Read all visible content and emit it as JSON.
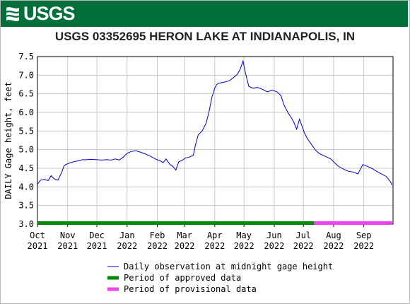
{
  "header": {
    "agency": "USGS"
  },
  "chart_data": {
    "type": "line",
    "title": "USGS 03352695 HERON LAKE AT INDIANAPOLIS, IN",
    "ylabel": "DAILY Gage height, feet",
    "xlabel": "",
    "ylim": [
      3.0,
      7.5
    ],
    "yticks": [
      "3.0",
      "3.5",
      "4.0",
      "4.5",
      "5.0",
      "5.5",
      "6.0",
      "6.5",
      "7.0",
      "7.5"
    ],
    "xlim": [
      "2021-10-01",
      "2022-09-30"
    ],
    "xticks": [
      {
        "date": "2021-10-01",
        "month": "Oct",
        "year": "2021"
      },
      {
        "date": "2021-11-01",
        "month": "Nov",
        "year": "2021"
      },
      {
        "date": "2021-12-01",
        "month": "Dec",
        "year": "2021"
      },
      {
        "date": "2022-01-01",
        "month": "Jan",
        "year": "2022"
      },
      {
        "date": "2022-02-01",
        "month": "Feb",
        "year": "2022"
      },
      {
        "date": "2022-03-01",
        "month": "Mar",
        "year": "2022"
      },
      {
        "date": "2022-04-01",
        "month": "Apr",
        "year": "2022"
      },
      {
        "date": "2022-05-01",
        "month": "May",
        "year": "2022"
      },
      {
        "date": "2022-06-01",
        "month": "Jun",
        "year": "2022"
      },
      {
        "date": "2022-07-01",
        "month": "Jul",
        "year": "2022"
      },
      {
        "date": "2022-08-01",
        "month": "Aug",
        "year": "2022"
      },
      {
        "date": "2022-09-01",
        "month": "Sep",
        "year": "2022"
      }
    ],
    "grid": true,
    "legend_position": "bottom",
    "series": [
      {
        "name": "Daily observation at midnight gage height",
        "color": "#0000cc",
        "x": [
          "2021-10-01",
          "2021-10-04",
          "2021-10-08",
          "2021-10-12",
          "2021-10-15",
          "2021-10-18",
          "2021-10-22",
          "2021-10-26",
          "2021-10-28",
          "2021-10-30",
          "2021-11-01",
          "2021-11-04",
          "2021-11-08",
          "2021-11-12",
          "2021-11-16",
          "2021-11-20",
          "2021-11-25",
          "2021-12-01",
          "2021-12-06",
          "2021-12-11",
          "2021-12-16",
          "2021-12-20",
          "2021-12-24",
          "2021-12-28",
          "2022-01-01",
          "2022-01-05",
          "2022-01-10",
          "2022-01-15",
          "2022-01-20",
          "2022-01-25",
          "2022-01-30",
          "2022-02-04",
          "2022-02-07",
          "2022-02-10",
          "2022-02-14",
          "2022-02-17",
          "2022-02-20",
          "2022-02-23",
          "2022-02-27",
          "2022-03-02",
          "2022-03-06",
          "2022-03-10",
          "2022-03-12",
          "2022-03-15",
          "2022-03-19",
          "2022-03-23",
          "2022-03-26",
          "2022-03-29",
          "2022-04-01",
          "2022-04-03",
          "2022-04-05",
          "2022-04-08",
          "2022-04-12",
          "2022-04-16",
          "2022-04-20",
          "2022-04-24",
          "2022-04-27",
          "2022-04-30",
          "2022-05-02",
          "2022-05-04",
          "2022-05-06",
          "2022-05-10",
          "2022-05-15",
          "2022-05-20",
          "2022-05-25",
          "2022-05-30",
          "2022-06-04",
          "2022-06-08",
          "2022-06-11",
          "2022-06-15",
          "2022-06-18",
          "2022-06-21",
          "2022-06-24",
          "2022-06-27",
          "2022-06-30",
          "2022-07-02",
          "2022-07-05",
          "2022-07-09",
          "2022-07-13",
          "2022-07-17",
          "2022-07-21",
          "2022-07-25",
          "2022-07-29",
          "2022-08-02",
          "2022-08-06",
          "2022-08-11",
          "2022-08-16",
          "2022-08-21",
          "2022-08-26",
          "2022-08-31",
          "2022-09-02",
          "2022-09-05",
          "2022-09-09",
          "2022-09-14",
          "2022-09-19",
          "2022-09-24",
          "2022-09-28",
          "2022-09-30"
        ],
        "y": [
          4.07,
          4.18,
          4.2,
          4.17,
          4.3,
          4.22,
          4.18,
          4.4,
          4.55,
          4.6,
          4.62,
          4.65,
          4.68,
          4.7,
          4.73,
          4.73,
          4.74,
          4.73,
          4.72,
          4.73,
          4.72,
          4.75,
          4.72,
          4.8,
          4.9,
          4.95,
          4.97,
          4.93,
          4.88,
          4.82,
          4.75,
          4.7,
          4.65,
          4.75,
          4.6,
          4.55,
          4.45,
          4.67,
          4.72,
          4.78,
          4.8,
          4.85,
          5.1,
          5.4,
          5.5,
          5.7,
          6.0,
          6.4,
          6.65,
          6.75,
          6.78,
          6.8,
          6.82,
          6.85,
          6.93,
          7.02,
          7.15,
          7.38,
          7.12,
          6.9,
          6.7,
          6.65,
          6.67,
          6.62,
          6.55,
          6.6,
          6.55,
          6.45,
          6.2,
          6.0,
          5.88,
          5.75,
          5.55,
          5.82,
          5.6,
          5.45,
          5.3,
          5.15,
          5.0,
          4.9,
          4.85,
          4.8,
          4.75,
          4.65,
          4.55,
          4.48,
          4.42,
          4.4,
          4.35,
          4.6,
          4.58,
          4.55,
          4.5,
          4.42,
          4.35,
          4.28,
          4.15,
          4.05
        ]
      }
    ],
    "periods": [
      {
        "name": "Period of approved data",
        "color": "#008800",
        "start": "2021-10-01",
        "end": "2022-07-12"
      },
      {
        "name": "Period of provisional data",
        "color": "#ee44ee",
        "start": "2022-07-12",
        "end": "2022-09-30"
      }
    ]
  }
}
